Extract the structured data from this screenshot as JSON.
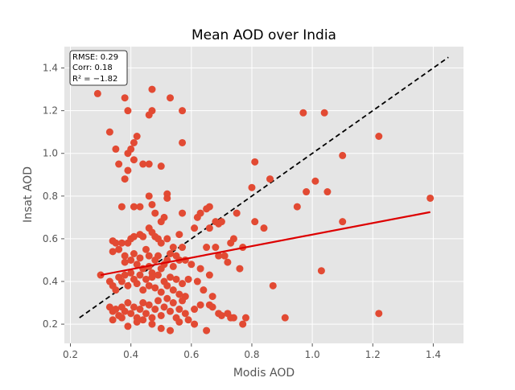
{
  "chart_data": {
    "type": "scatter",
    "title": "Mean AOD over India",
    "xlabel": "Modis AOD",
    "ylabel": "Insat AOD",
    "xlim": [
      0.18,
      1.5
    ],
    "ylim": [
      0.11,
      1.5
    ],
    "xticks": [
      0.2,
      0.4,
      0.6,
      0.8,
      1.0,
      1.2,
      1.4
    ],
    "yticks": [
      0.2,
      0.4,
      0.6,
      0.8,
      1.0,
      1.2,
      1.4
    ],
    "xtick_labels": [
      "0.2",
      "0.4",
      "0.6",
      "0.8",
      "1.0",
      "1.2",
      "1.4"
    ],
    "ytick_labels": [
      "0.2",
      "0.4",
      "0.6",
      "0.8",
      "1.0",
      "1.2",
      "1.4"
    ],
    "grid": true,
    "style": "ggplot",
    "stats": {
      "rmse": "RMSE: 0.29",
      "corr": "Corr: 0.18",
      "r2": "R² = −1.82"
    },
    "one_to_one_line": {
      "x": [
        0.23,
        1.45
      ],
      "y": [
        0.23,
        1.45
      ],
      "color": "#000000",
      "style": "dashed"
    },
    "fit_line": {
      "x": [
        0.3,
        1.39
      ],
      "y": [
        0.43,
        0.725
      ],
      "color": "#dd0000"
    },
    "points_color": "#e24a33",
    "points": [
      [
        0.29,
        1.28
      ],
      [
        0.33,
        1.1
      ],
      [
        0.38,
        1.26
      ],
      [
        0.39,
        1.2
      ],
      [
        0.47,
        1.3
      ],
      [
        0.47,
        1.2
      ],
      [
        0.46,
        1.18
      ],
      [
        0.53,
        1.26
      ],
      [
        0.57,
        1.2
      ],
      [
        0.35,
        1.02
      ],
      [
        0.39,
        1.0
      ],
      [
        0.4,
        1.02
      ],
      [
        0.41,
        1.05
      ],
      [
        0.42,
        1.08
      ],
      [
        0.36,
        0.95
      ],
      [
        0.41,
        0.97
      ],
      [
        0.44,
        0.95
      ],
      [
        0.46,
        0.95
      ],
      [
        0.5,
        0.94
      ],
      [
        0.57,
        1.05
      ],
      [
        0.38,
        0.88
      ],
      [
        0.39,
        0.92
      ],
      [
        0.37,
        0.75
      ],
      [
        0.41,
        0.75
      ],
      [
        0.43,
        0.75
      ],
      [
        0.46,
        0.8
      ],
      [
        0.47,
        0.76
      ],
      [
        0.48,
        0.72
      ],
      [
        0.5,
        0.68
      ],
      [
        0.51,
        0.7
      ],
      [
        0.52,
        0.81
      ],
      [
        0.52,
        0.79
      ],
      [
        0.57,
        0.72
      ],
      [
        0.34,
        0.59
      ],
      [
        0.35,
        0.58
      ],
      [
        0.37,
        0.58
      ],
      [
        0.39,
        0.58
      ],
      [
        0.4,
        0.6
      ],
      [
        0.41,
        0.61
      ],
      [
        0.43,
        0.62
      ],
      [
        0.44,
        0.61
      ],
      [
        0.46,
        0.65
      ],
      [
        0.47,
        0.63
      ],
      [
        0.48,
        0.61
      ],
      [
        0.49,
        0.6
      ],
      [
        0.5,
        0.58
      ],
      [
        0.52,
        0.6
      ],
      [
        0.54,
        0.56
      ],
      [
        0.56,
        0.62
      ],
      [
        0.57,
        0.56
      ],
      [
        0.34,
        0.54
      ],
      [
        0.36,
        0.55
      ],
      [
        0.38,
        0.52
      ],
      [
        0.38,
        0.49
      ],
      [
        0.4,
        0.5
      ],
      [
        0.41,
        0.53
      ],
      [
        0.42,
        0.48
      ],
      [
        0.43,
        0.51
      ],
      [
        0.44,
        0.46
      ],
      [
        0.45,
        0.55
      ],
      [
        0.46,
        0.52
      ],
      [
        0.46,
        0.47
      ],
      [
        0.47,
        0.44
      ],
      [
        0.48,
        0.5
      ],
      [
        0.49,
        0.52
      ],
      [
        0.5,
        0.46
      ],
      [
        0.51,
        0.48
      ],
      [
        0.52,
        0.5
      ],
      [
        0.53,
        0.53
      ],
      [
        0.54,
        0.47
      ],
      [
        0.55,
        0.52
      ],
      [
        0.56,
        0.5
      ],
      [
        0.58,
        0.5
      ],
      [
        0.6,
        0.48
      ],
      [
        0.3,
        0.43
      ],
      [
        0.33,
        0.4
      ],
      [
        0.34,
        0.38
      ],
      [
        0.35,
        0.36
      ],
      [
        0.36,
        0.42
      ],
      [
        0.37,
        0.4
      ],
      [
        0.38,
        0.43
      ],
      [
        0.39,
        0.38
      ],
      [
        0.4,
        0.44
      ],
      [
        0.41,
        0.41
      ],
      [
        0.42,
        0.39
      ],
      [
        0.43,
        0.43
      ],
      [
        0.44,
        0.36
      ],
      [
        0.45,
        0.41
      ],
      [
        0.46,
        0.38
      ],
      [
        0.47,
        0.42
      ],
      [
        0.48,
        0.37
      ],
      [
        0.49,
        0.43
      ],
      [
        0.5,
        0.35
      ],
      [
        0.51,
        0.4
      ],
      [
        0.52,
        0.38
      ],
      [
        0.53,
        0.42
      ],
      [
        0.54,
        0.36
      ],
      [
        0.55,
        0.41
      ],
      [
        0.56,
        0.34
      ],
      [
        0.57,
        0.39
      ],
      [
        0.58,
        0.33
      ],
      [
        0.59,
        0.41
      ],
      [
        0.33,
        0.28
      ],
      [
        0.34,
        0.26
      ],
      [
        0.35,
        0.27
      ],
      [
        0.36,
        0.24
      ],
      [
        0.37,
        0.28
      ],
      [
        0.38,
        0.26
      ],
      [
        0.39,
        0.3
      ],
      [
        0.4,
        0.25
      ],
      [
        0.41,
        0.28
      ],
      [
        0.42,
        0.23
      ],
      [
        0.43,
        0.27
      ],
      [
        0.44,
        0.3
      ],
      [
        0.45,
        0.25
      ],
      [
        0.46,
        0.29
      ],
      [
        0.47,
        0.23
      ],
      [
        0.48,
        0.27
      ],
      [
        0.49,
        0.31
      ],
      [
        0.5,
        0.24
      ],
      [
        0.51,
        0.28
      ],
      [
        0.52,
        0.32
      ],
      [
        0.53,
        0.26
      ],
      [
        0.54,
        0.3
      ],
      [
        0.55,
        0.23
      ],
      [
        0.56,
        0.27
      ],
      [
        0.57,
        0.31
      ],
      [
        0.58,
        0.25
      ],
      [
        0.59,
        0.22
      ],
      [
        0.61,
        0.27
      ],
      [
        0.34,
        0.22
      ],
      [
        0.37,
        0.23
      ],
      [
        0.39,
        0.19
      ],
      [
        0.42,
        0.21
      ],
      [
        0.44,
        0.22
      ],
      [
        0.47,
        0.2
      ],
      [
        0.5,
        0.18
      ],
      [
        0.53,
        0.17
      ],
      [
        0.56,
        0.21
      ],
      [
        0.61,
        0.65
      ],
      [
        0.62,
        0.7
      ],
      [
        0.63,
        0.72
      ],
      [
        0.65,
        0.74
      ],
      [
        0.66,
        0.75
      ],
      [
        0.68,
        0.68
      ],
      [
        0.69,
        0.67
      ],
      [
        0.7,
        0.68
      ],
      [
        0.75,
        0.72
      ],
      [
        0.8,
        0.84
      ],
      [
        0.81,
        0.96
      ],
      [
        0.86,
        0.88
      ],
      [
        0.81,
        0.68
      ],
      [
        0.66,
        0.65
      ],
      [
        0.68,
        0.56
      ],
      [
        0.65,
        0.56
      ],
      [
        0.69,
        0.52
      ],
      [
        0.71,
        0.52
      ],
      [
        0.73,
        0.58
      ],
      [
        0.74,
        0.6
      ],
      [
        0.77,
        0.56
      ],
      [
        0.76,
        0.46
      ],
      [
        0.72,
        0.49
      ],
      [
        0.63,
        0.46
      ],
      [
        0.66,
        0.43
      ],
      [
        0.62,
        0.4
      ],
      [
        0.64,
        0.36
      ],
      [
        0.66,
        0.29
      ],
      [
        0.67,
        0.33
      ],
      [
        0.69,
        0.25
      ],
      [
        0.7,
        0.24
      ],
      [
        0.72,
        0.25
      ],
      [
        0.73,
        0.23
      ],
      [
        0.74,
        0.23
      ],
      [
        0.77,
        0.2
      ],
      [
        0.78,
        0.23
      ],
      [
        0.65,
        0.17
      ],
      [
        0.61,
        0.2
      ],
      [
        0.63,
        0.29
      ],
      [
        0.67,
        0.28
      ],
      [
        0.87,
        0.38
      ],
      [
        0.91,
        0.23
      ],
      [
        0.84,
        0.65
      ],
      [
        0.95,
        0.75
      ],
      [
        0.98,
        0.82
      ],
      [
        1.01,
        0.87
      ],
      [
        1.05,
        0.82
      ],
      [
        1.03,
        0.45
      ],
      [
        1.1,
        0.68
      ],
      [
        1.1,
        0.99
      ],
      [
        0.97,
        1.19
      ],
      [
        1.04,
        1.19
      ],
      [
        1.22,
        1.08
      ],
      [
        1.22,
        0.25
      ],
      [
        1.39,
        0.79
      ]
    ]
  }
}
